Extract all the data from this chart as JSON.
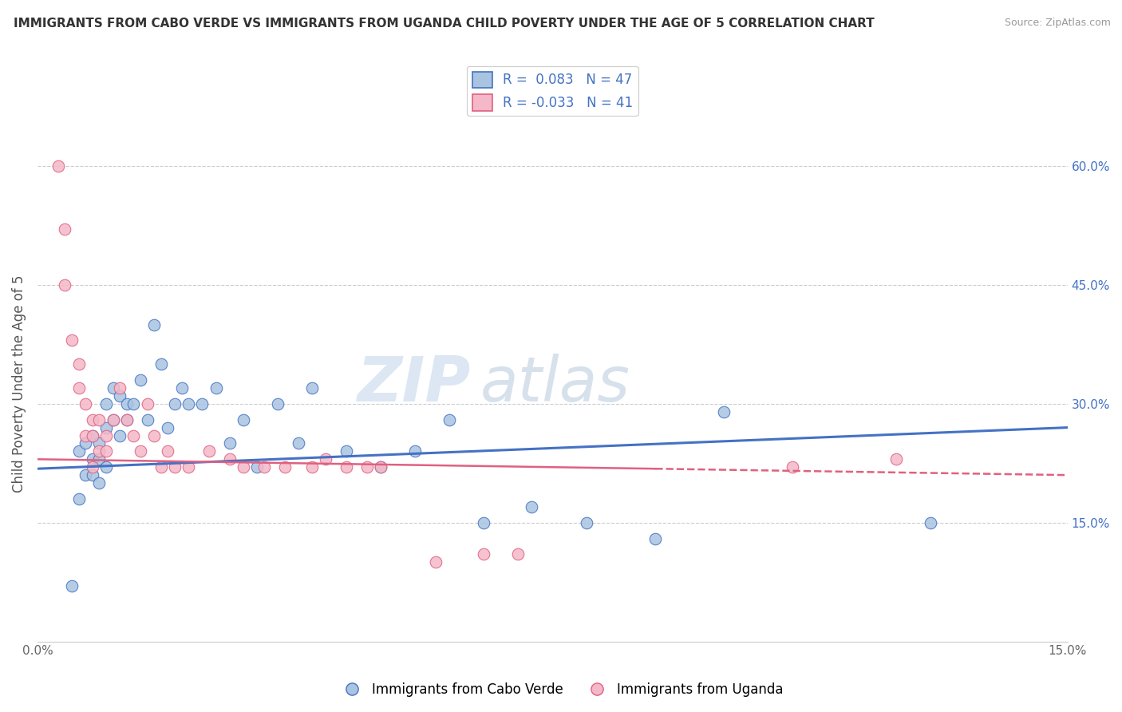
{
  "title": "IMMIGRANTS FROM CABO VERDE VS IMMIGRANTS FROM UGANDA CHILD POVERTY UNDER THE AGE OF 5 CORRELATION CHART",
  "source": "Source: ZipAtlas.com",
  "ylabel": "Child Poverty Under the Age of 5",
  "xlim": [
    0.0,
    0.15
  ],
  "ylim": [
    0.0,
    0.65
  ],
  "ytick_labels_right": [
    "60.0%",
    "45.0%",
    "30.0%",
    "15.0%"
  ],
  "ytick_positions_right": [
    0.6,
    0.45,
    0.3,
    0.15
  ],
  "R_cabo": 0.083,
  "N_cabo": 47,
  "R_uganda": -0.033,
  "N_uganda": 41,
  "color_cabo": "#a8c4e0",
  "color_uganda": "#f4b8c8",
  "line_color_cabo": "#4472c4",
  "line_color_uganda": "#e06080",
  "watermark_zip": "ZIP",
  "watermark_atlas": "atlas",
  "cabo_scatter_x": [
    0.005,
    0.006,
    0.006,
    0.007,
    0.007,
    0.008,
    0.008,
    0.008,
    0.009,
    0.009,
    0.009,
    0.01,
    0.01,
    0.01,
    0.011,
    0.011,
    0.012,
    0.012,
    0.013,
    0.013,
    0.014,
    0.015,
    0.016,
    0.017,
    0.018,
    0.019,
    0.02,
    0.021,
    0.022,
    0.024,
    0.026,
    0.028,
    0.03,
    0.032,
    0.035,
    0.038,
    0.04,
    0.045,
    0.05,
    0.055,
    0.06,
    0.065,
    0.072,
    0.08,
    0.09,
    0.1,
    0.13
  ],
  "cabo_scatter_y": [
    0.07,
    0.24,
    0.18,
    0.25,
    0.21,
    0.26,
    0.23,
    0.21,
    0.25,
    0.23,
    0.2,
    0.27,
    0.3,
    0.22,
    0.32,
    0.28,
    0.31,
    0.26,
    0.3,
    0.28,
    0.3,
    0.33,
    0.28,
    0.4,
    0.35,
    0.27,
    0.3,
    0.32,
    0.3,
    0.3,
    0.32,
    0.25,
    0.28,
    0.22,
    0.3,
    0.25,
    0.32,
    0.24,
    0.22,
    0.24,
    0.28,
    0.15,
    0.17,
    0.15,
    0.13,
    0.29,
    0.15
  ],
  "uganda_scatter_x": [
    0.003,
    0.004,
    0.004,
    0.005,
    0.006,
    0.006,
    0.007,
    0.007,
    0.008,
    0.008,
    0.008,
    0.009,
    0.009,
    0.01,
    0.01,
    0.011,
    0.012,
    0.013,
    0.014,
    0.015,
    0.016,
    0.017,
    0.018,
    0.019,
    0.02,
    0.022,
    0.025,
    0.028,
    0.03,
    0.033,
    0.036,
    0.04,
    0.042,
    0.045,
    0.048,
    0.05,
    0.058,
    0.065,
    0.07,
    0.11,
    0.125
  ],
  "uganda_scatter_y": [
    0.6,
    0.52,
    0.45,
    0.38,
    0.35,
    0.32,
    0.3,
    0.26,
    0.28,
    0.26,
    0.22,
    0.28,
    0.24,
    0.26,
    0.24,
    0.28,
    0.32,
    0.28,
    0.26,
    0.24,
    0.3,
    0.26,
    0.22,
    0.24,
    0.22,
    0.22,
    0.24,
    0.23,
    0.22,
    0.22,
    0.22,
    0.22,
    0.23,
    0.22,
    0.22,
    0.22,
    0.1,
    0.11,
    0.11,
    0.22,
    0.23
  ],
  "cabo_line_x0": 0.0,
  "cabo_line_y0": 0.218,
  "cabo_line_x1": 0.15,
  "cabo_line_y1": 0.27,
  "uganda_line_x0": 0.0,
  "uganda_line_y0": 0.23,
  "uganda_line_x1": 0.15,
  "uganda_line_y1": 0.21
}
